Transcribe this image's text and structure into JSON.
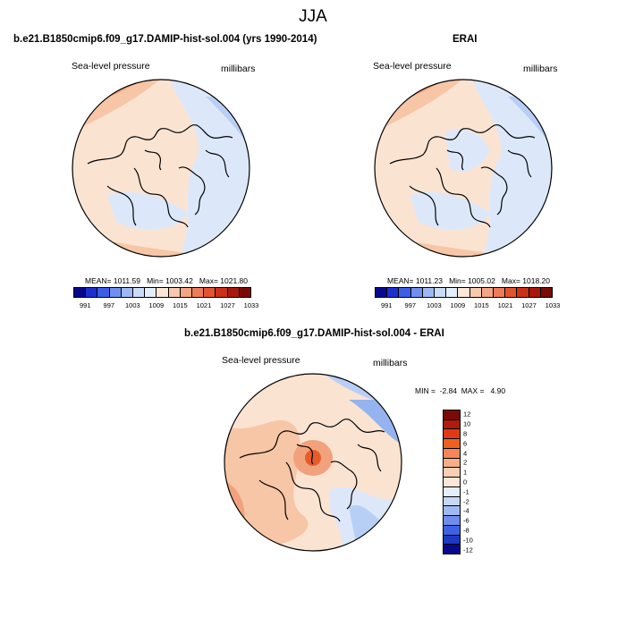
{
  "title": "JJA",
  "panels": [
    {
      "title": "b.e21.B1850cmip6.f09_g17.DAMIP-hist-sol.004 (yrs 1990-2014)",
      "left_label": "Sea-level pressure",
      "right_label": "millibars",
      "stats": "MEAN= 1011.59   Min= 1003.42   Max= 1021.80"
    },
    {
      "title": "ERAI",
      "left_label": "Sea-level pressure",
      "right_label": "millibars",
      "stats": "MEAN= 1011.23   Min= 1005.02   Max= 1018.20"
    },
    {
      "title": "b.e21.B1850cmip6.f09_g17.DAMIP-hist-sol.004 - ERAI",
      "left_label": "Sea-level pressure",
      "right_label": "millibars",
      "stats": "MIN =  -2.84  MAX =   4.90"
    }
  ],
  "colorbar_abs": {
    "tick_labels": [
      "991",
      "997",
      "1003",
      "1009",
      "1015",
      "1021",
      "1027",
      "1033"
    ],
    "colors": [
      "#08088c",
      "#1c2fd0",
      "#3a5ee8",
      "#6f8ff0",
      "#9db8f4",
      "#c8dcf8",
      "#e3eefb",
      "#fbe6d8",
      "#f8c9ad",
      "#f4a583",
      "#ef7b57",
      "#e4532f",
      "#cc3017",
      "#a8190c",
      "#7a0a05"
    ]
  },
  "colorbar_diff": {
    "tick_labels": [
      "12",
      "10",
      "8",
      "6",
      "4",
      "2",
      "1",
      "0",
      "-1",
      "-2",
      "-4",
      "-6",
      "-8",
      "-10",
      "-12"
    ],
    "colors": [
      "#7a0a05",
      "#b21b0c",
      "#e03a14",
      "#f0601e",
      "#f4875a",
      "#f7ae88",
      "#f9cfb4",
      "#fbe6d8",
      "#e3eefb",
      "#c6d8f6",
      "#9fbaf2",
      "#6d8eec",
      "#3e62e2",
      "#1e38c4",
      "#08088c"
    ]
  },
  "map_fill": {
    "warm": "#fbe3d2",
    "warm2": "#f7c6a6",
    "warm3": "#f1a27c",
    "cool": "#dce8fa",
    "cool2": "#b8cff5",
    "cool3": "#95b3ee"
  }
}
